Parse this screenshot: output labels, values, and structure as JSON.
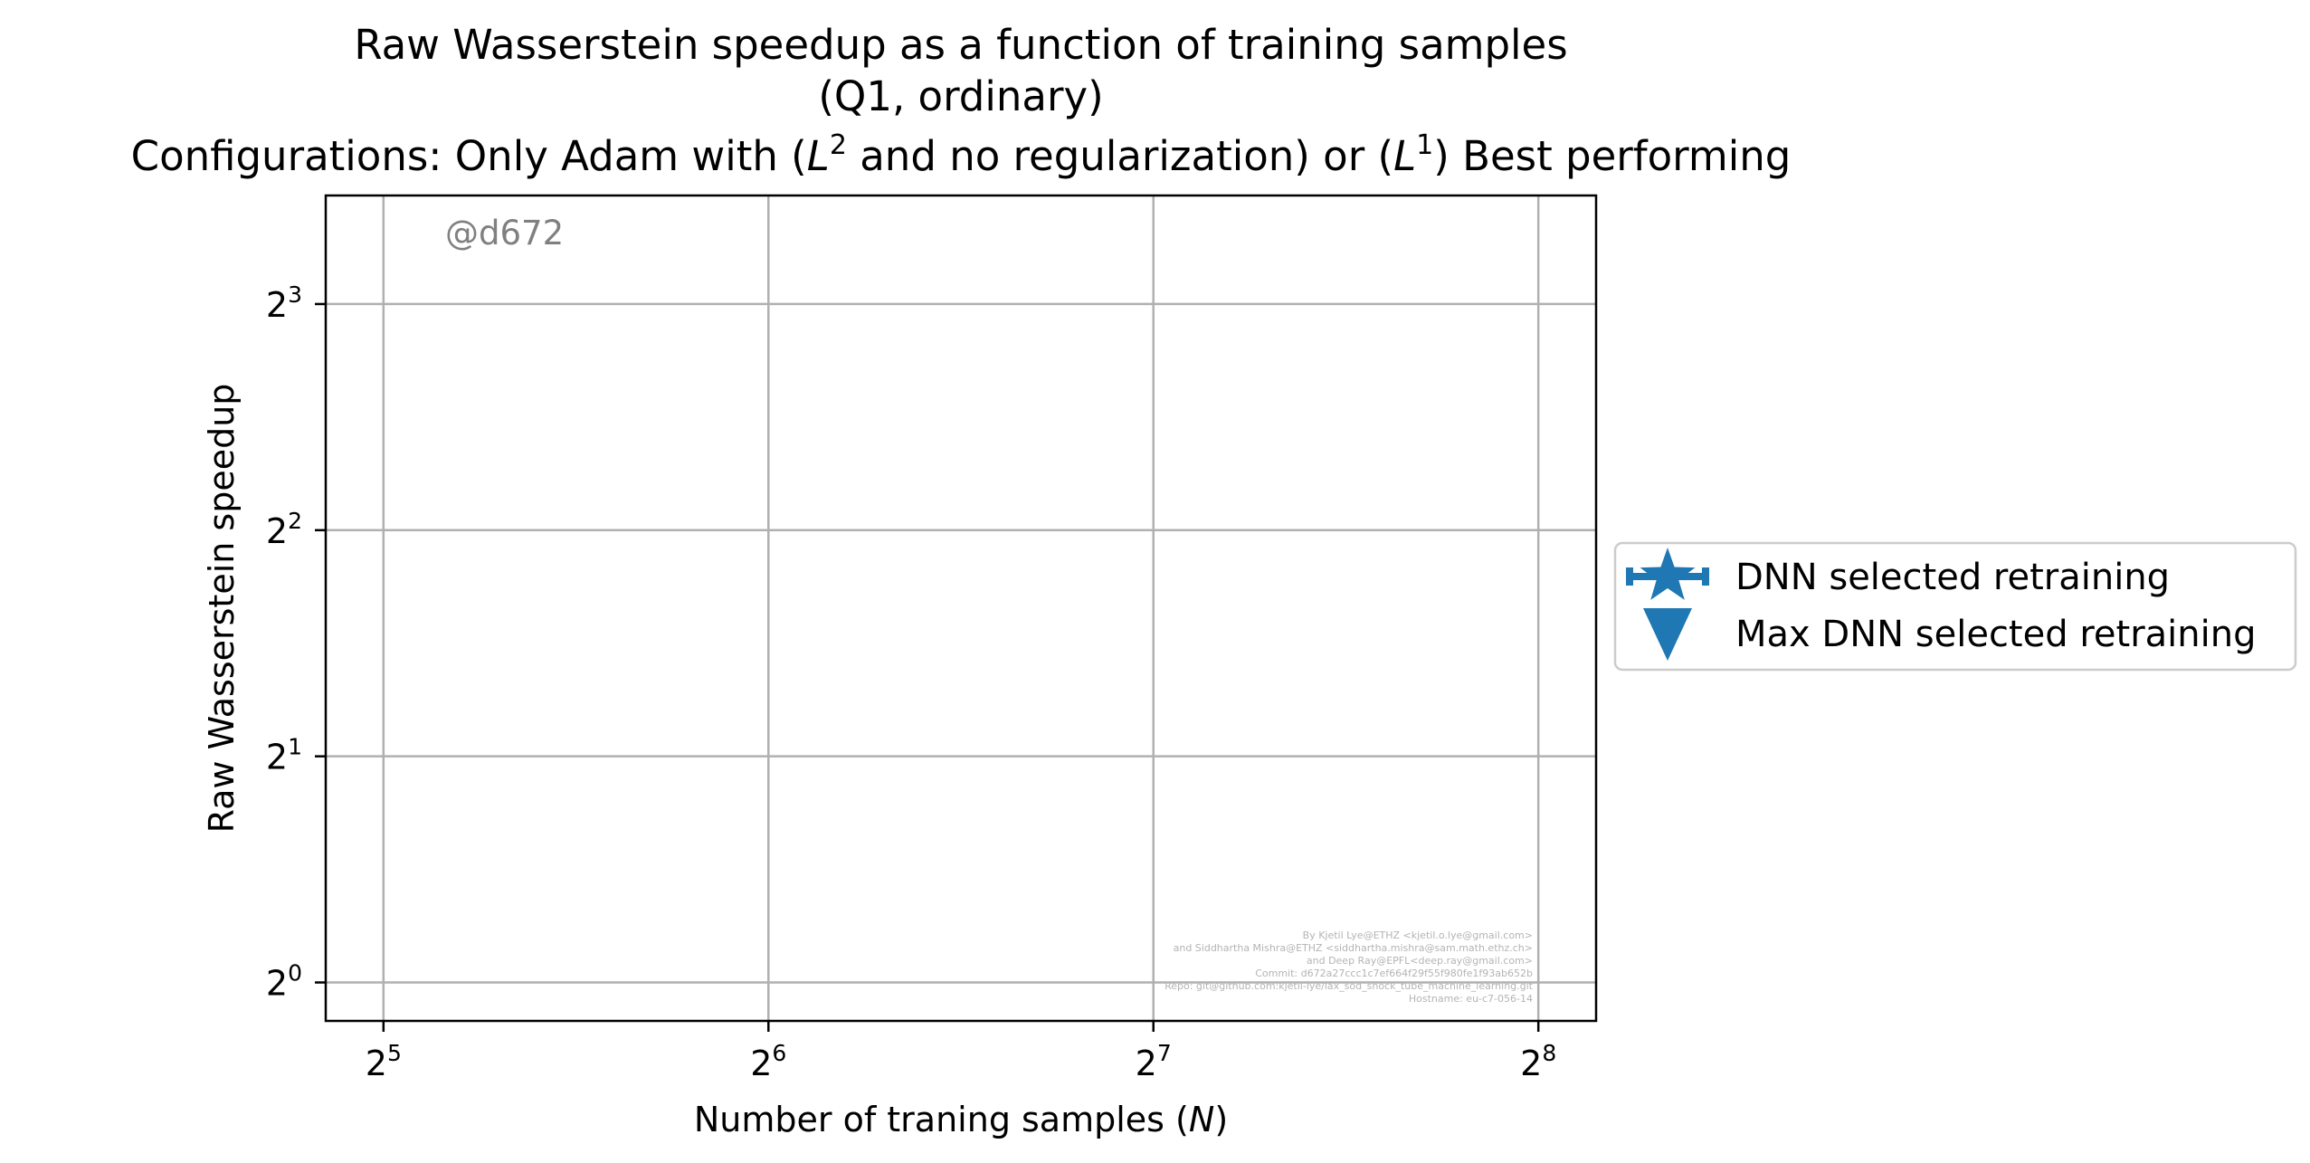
{
  "chart_data": {
    "type": "scatter",
    "title_lines": [
      "Raw Wasserstein speedup as a function of training samples",
      "(Q1, ordinary)"
    ],
    "title_line3": {
      "before_l2": "Configurations: Only Adam with (",
      "l2_base": "L",
      "l2_exp": "2",
      "between": " and no regularization) or (",
      "l1_base": "L",
      "l1_exp": "1",
      "after": ") Best performing"
    },
    "xlabel": {
      "text": "Number of traning samples (",
      "var": "N",
      "close": ")"
    },
    "ylabel": "Raw Wasserstein speedup",
    "x_scale": "log2",
    "y_scale": "log2",
    "xlim_exponents": [
      4.85,
      8.15
    ],
    "ylim_exponents": [
      -0.17,
      3.48
    ],
    "x_ticks": [
      {
        "base": "2",
        "exp": "5",
        "value": 32
      },
      {
        "base": "2",
        "exp": "6",
        "value": 64
      },
      {
        "base": "2",
        "exp": "7",
        "value": 128
      },
      {
        "base": "2",
        "exp": "8",
        "value": 256
      }
    ],
    "y_ticks": [
      {
        "base": "2",
        "exp": "0",
        "value": 1
      },
      {
        "base": "2",
        "exp": "1",
        "value": 2
      },
      {
        "base": "2",
        "exp": "2",
        "value": 4
      },
      {
        "base": "2",
        "exp": "3",
        "value": 8
      }
    ],
    "grid": true,
    "series": [
      {
        "name": "DNN selected retraining",
        "marker": "star-errorbar",
        "color": "#1f77b4",
        "points": []
      },
      {
        "name": "Max DNN selected retraining",
        "marker": "triangle-down",
        "color": "#1f77b4",
        "points": []
      }
    ],
    "legend_position": "outside-right",
    "tag": "@d672",
    "credits": [
      "By Kjetil Lye@ETHZ <kjetil.o.lye@gmail.com>",
      "and Siddhartha Mishra@ETHZ <siddhartha.mishra@sam.math.ethz.ch>",
      "and Deep Ray@EPFL<deep.ray@gmail.com>",
      "Commit: d672a27ccc1c7ef664f29f55f980fe1f93ab652b",
      "Repo: git@github.com:kjetil-lye/lax_sod_shock_tube_machine_learning.git",
      "Hostname: eu-c7-056-14"
    ]
  }
}
